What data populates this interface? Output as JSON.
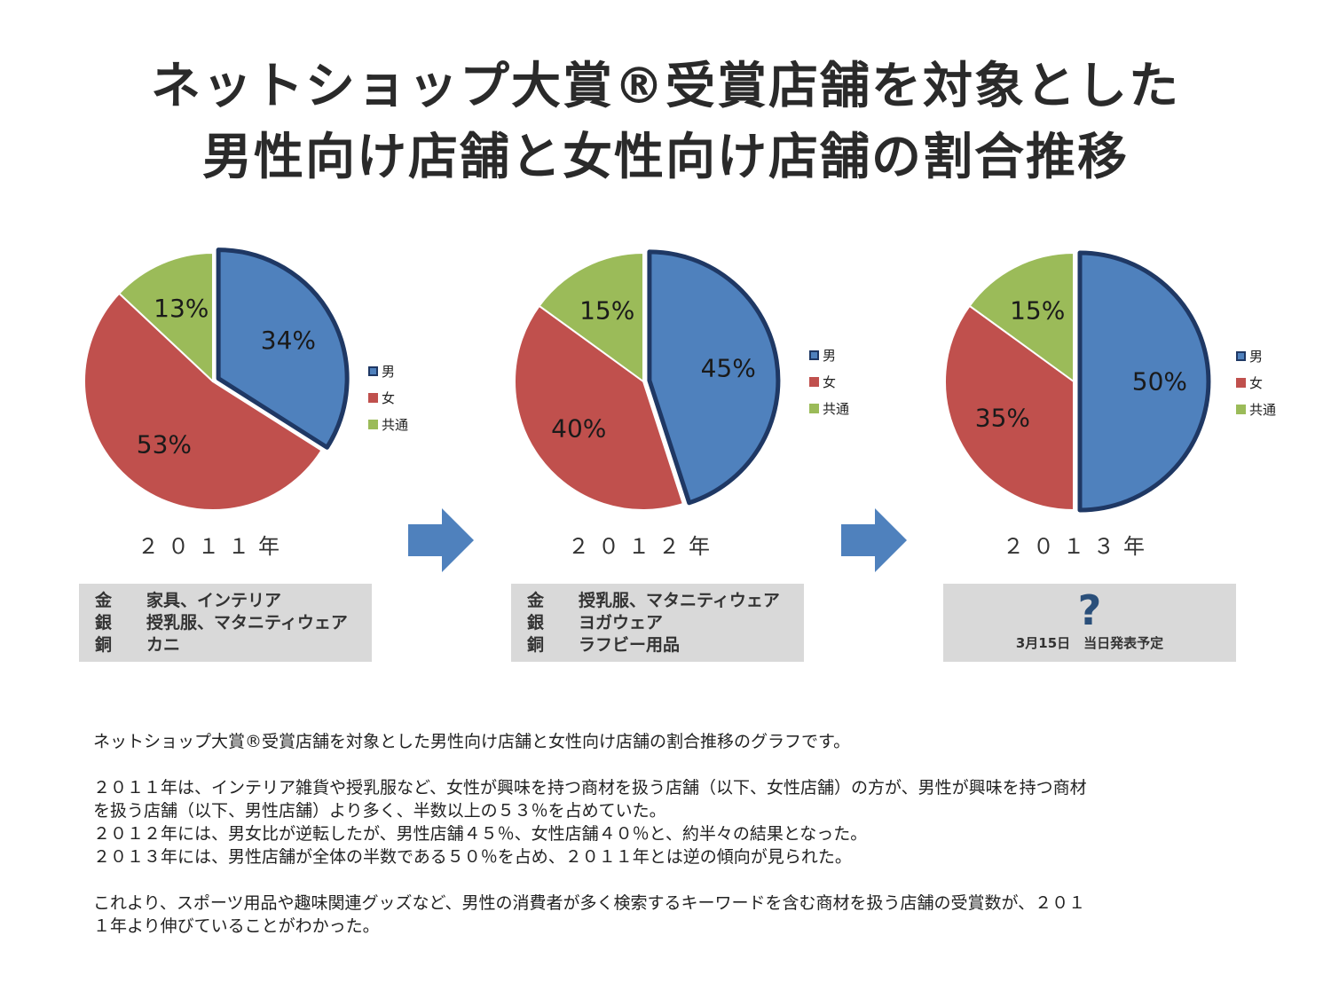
{
  "title": {
    "line1": "ネットショップ大賞®受賞店舗を対象とした",
    "line2": "男性向け店舗と女性向け店舗の割合推移"
  },
  "colors": {
    "male": "#4f81bd",
    "female": "#c0504d",
    "common": "#9bbb59",
    "male_outline": "#1f3864"
  },
  "chart_data": [
    {
      "type": "pie",
      "title": "２０１１年",
      "series": [
        {
          "name": "男",
          "value": 34,
          "label": "34%"
        },
        {
          "name": "女",
          "value": 53,
          "label": "53%"
        },
        {
          "name": "共通",
          "value": 13,
          "label": "13%"
        }
      ],
      "legend": "right",
      "exploded": "男"
    },
    {
      "type": "pie",
      "title": "２０１２年",
      "series": [
        {
          "name": "男",
          "value": 45,
          "label": "45%"
        },
        {
          "name": "女",
          "value": 40,
          "label": "40%"
        },
        {
          "name": "共通",
          "value": 15,
          "label": "15%"
        }
      ],
      "legend": "right",
      "exploded": "男"
    },
    {
      "type": "pie",
      "title": "２０１３年",
      "series": [
        {
          "name": "男",
          "value": 50,
          "label": "50%"
        },
        {
          "name": "女",
          "value": 35,
          "label": "35%"
        },
        {
          "name": "共通",
          "value": 15,
          "label": "15%"
        }
      ],
      "legend": "right",
      "exploded": "男"
    }
  ],
  "winners": [
    {
      "rows": [
        {
          "rank": "金",
          "name": "家具、インテリア"
        },
        {
          "rank": "銀",
          "name": "授乳服、マタニティウェア"
        },
        {
          "rank": "銅",
          "name": "カニ"
        }
      ]
    },
    {
      "rows": [
        {
          "rank": "金",
          "name": "授乳服、マタニティウェア"
        },
        {
          "rank": "銀",
          "name": "ヨガウェア"
        },
        {
          "rank": "銅",
          "name": "ラフビー用品"
        }
      ]
    }
  ],
  "pending": {
    "mark": "?",
    "text": "3月15日　当日発表予定"
  },
  "description": [
    "ネットショップ大賞®受賞店舗を対象とした男性向け店舗と女性向け店舗の割合推移のグラフです。",
    "",
    "２０１１年は、インテリア雑貨や授乳服など、女性が興味を持つ商材を扱う店舗（以下、女性店舗）の方が、男性が興味を持つ商材",
    "を扱う店舗（以下、男性店舗）より多く、半数以上の５３％を占めていた。",
    "２０１２年には、男女比が逆転したが、男性店舗４５％、女性店舗４０％と、約半々の結果となった。",
    "２０１３年には、男性店舗が全体の半数である５０％を占め、２０１１年とは逆の傾向が見られた。",
    "",
    "これより、スポーツ用品や趣味関連グッズなど、男性の消費者が多く検索するキーワードを含む商材を扱う店舗の受賞数が、２０１",
    "１年より伸びていることがわかった。"
  ]
}
